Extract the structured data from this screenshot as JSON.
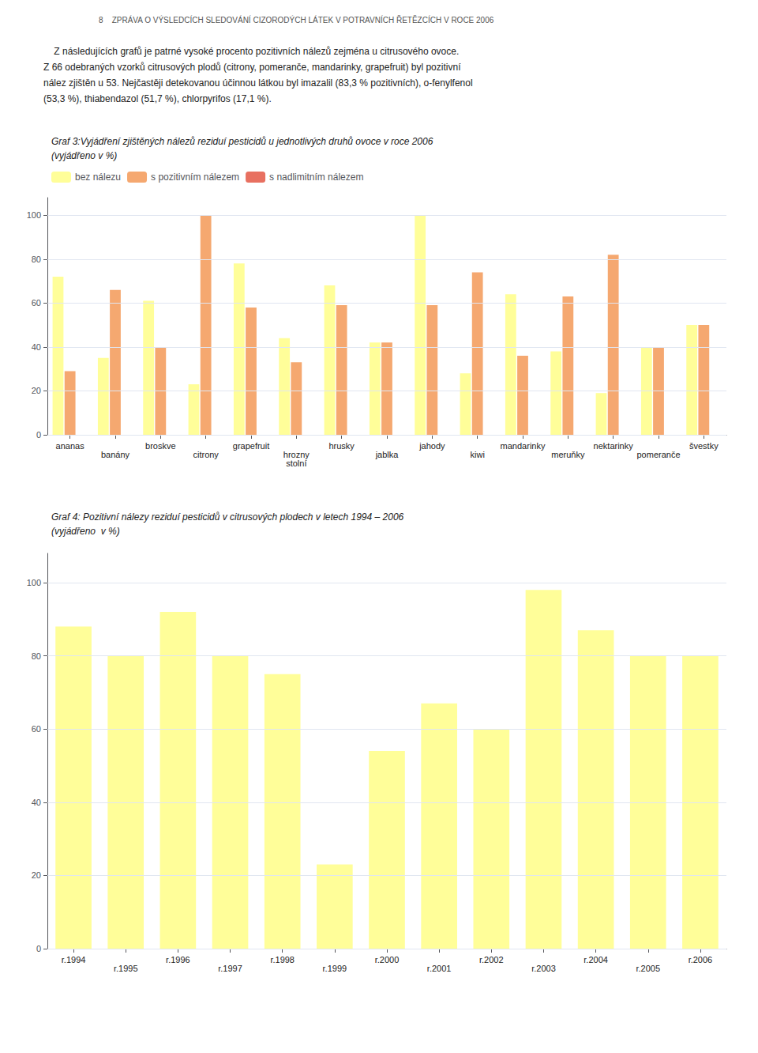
{
  "chart_data": [
    {
      "type": "bar",
      "title": "Graf 3:Vyjádření zjištěných nálezů reziduí pesticidů u jednotlivých druhů ovoce v roce 2006\n(vyjádřeno v %)",
      "annotations": [
        "8    ZPRÁVA O VÝSLEDCÍCH SLEDOVÁNÍ CIZORODÝCH LÁTEK V POTRAVNÍCH ŘETĚZCÍCH V ROCE 2006",
        "    Z následujících grafů je patrné vysoké procento pozitivních nálezů zejména u citrusového ovoce.\nZ 66 odebraných vzorků citrusových plodů (citrony, pomeranče, mandarinky, grapefruit) byl pozitivní\nnález zjištěn u 53. Nejčastěji detekovanou účinnou látkou byl imazalil (83,3 % pozitivních), o-fenylfenol\n(53,3 %), thiabendazol (51,7 %), chlorpyrifos (17,1 %)."
      ],
      "categories": [
        "ananas",
        "banány",
        "broskve",
        "citrony",
        "grapefruit",
        "hrozny\nstolní",
        "hrusky",
        "jablka",
        "jahody",
        "kiwi",
        "mandarinky",
        "meruňky",
        "nektarinky",
        "pomeranče",
        "švestky"
      ],
      "series": [
        {
          "name": "bez nálezu",
          "color": "#FFFE99",
          "values": [
            72,
            35,
            61,
            23,
            78,
            44,
            68,
            42,
            100,
            28,
            64,
            38,
            19,
            40,
            50
          ]
        },
        {
          "name": "s pozitivním nálezem",
          "color": "#F5A870",
          "values": [
            29,
            66,
            40,
            100,
            58,
            33,
            59,
            42,
            59,
            74,
            36,
            63,
            82,
            40,
            50
          ]
        },
        {
          "name": "s nadlimitním nálezem",
          "color": "#E87060",
          "values": [
            null,
            null,
            null,
            null,
            null,
            null,
            null,
            null,
            null,
            null,
            null,
            null,
            null,
            null,
            null
          ]
        }
      ],
      "ylim": [
        0,
        108
      ],
      "yticks": [
        0,
        20,
        40,
        60,
        80,
        100
      ],
      "grid": true,
      "legend": "top-left"
    },
    {
      "type": "bar",
      "title": "Graf 4: Pozitivní nálezy reziduí pesticidů v citrusových plodech v letech 1994 – 2006\n(vyjádřeno  v %)",
      "categories": [
        "r.1994",
        "r.1995",
        "r.1996",
        "r.1997",
        "r.1998",
        "r.1999",
        "r.2000",
        "r.2001",
        "r.2002",
        "r.2003",
        "r.2004",
        "r.2005",
        "r.2006"
      ],
      "values": [
        88,
        80,
        92,
        80,
        75,
        23,
        54,
        67,
        60,
        98,
        87,
        80,
        80
      ],
      "color": "#FFFE99",
      "ylim": [
        0,
        108
      ],
      "yticks": [
        0,
        20,
        40,
        60,
        80,
        100
      ],
      "grid": true
    }
  ]
}
